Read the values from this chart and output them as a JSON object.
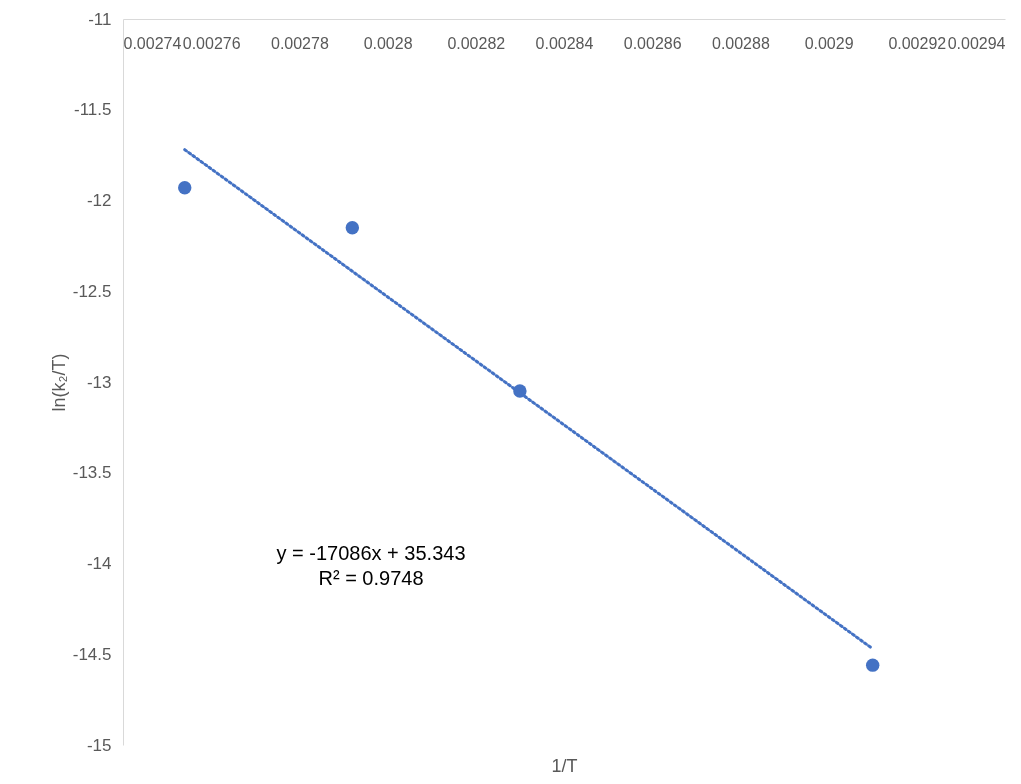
{
  "chart_data": {
    "type": "scatter",
    "xlabel": "1/T",
    "ylabel": "ln(k₂/T)",
    "xlim": [
      0.00274,
      0.00294
    ],
    "xticks": [
      0.00274,
      0.00276,
      0.00278,
      0.0028,
      0.00282,
      0.00284,
      0.00286,
      0.00288,
      0.0029,
      0.00292,
      0.00294
    ],
    "ylim": [
      -15,
      -11
    ],
    "yticks": [
      -15,
      -14.5,
      -14,
      -13.5,
      -13,
      -12.5,
      -12,
      -11.5,
      -11
    ],
    "grid": false,
    "series": [
      {
        "marker": "circle",
        "color": "#4472c4",
        "x": [
          0.002754,
          0.002792,
          0.00283,
          0.00291
        ],
        "values": [
          -11.93,
          -12.15,
          -13.05,
          -14.56
        ]
      },
      {
        "type": "line",
        "color": "#4472c4",
        "line_style": "dotted",
        "x": [
          0.002754,
          0.00291
        ],
        "values": [
          -11.72,
          -14.47
        ]
      }
    ],
    "annotations": [
      "y = -17086x + 35.343",
      "R² = 0.9748"
    ]
  }
}
